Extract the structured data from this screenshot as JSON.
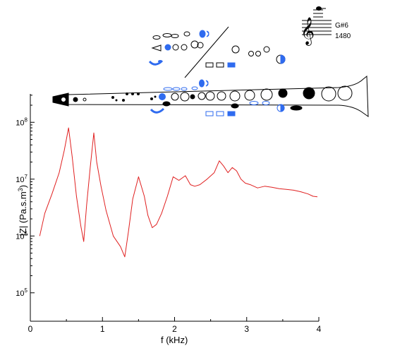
{
  "note": {
    "name": "G#6",
    "frequency": "1480"
  },
  "chart_data": {
    "type": "line",
    "title": "",
    "xlabel": "f (kHz)",
    "ylabel": "|Z| (Pa.s.m-3)",
    "xlim": [
      0,
      4
    ],
    "ylim_log10": [
      4.5,
      8.5
    ],
    "y_scale": "log",
    "x_ticks": [
      0,
      1,
      2,
      3,
      4
    ],
    "y_ticks": [
      {
        "exp": "5",
        "value": 100000
      },
      {
        "exp": "6",
        "value": 1000000
      },
      {
        "exp": "7",
        "value": 10000000
      },
      {
        "exp": "8",
        "value": 100000000
      }
    ],
    "grid": false,
    "series": [
      {
        "color": "#e02020",
        "x": [
          0.13,
          0.2,
          0.3,
          0.4,
          0.47,
          0.53,
          0.58,
          0.64,
          0.7,
          0.74,
          0.78,
          0.83,
          0.88,
          0.92,
          0.98,
          1.05,
          1.15,
          1.25,
          1.31,
          1.36,
          1.42,
          1.5,
          1.58,
          1.63,
          1.69,
          1.75,
          1.82,
          1.9,
          1.98,
          2.06,
          2.15,
          2.22,
          2.28,
          2.35,
          2.45,
          2.55,
          2.62,
          2.68,
          2.74,
          2.8,
          2.86,
          2.92,
          2.98,
          3.05,
          3.15,
          3.25,
          3.35,
          3.45,
          3.55,
          3.65,
          3.75,
          3.85,
          3.92,
          3.98
        ],
        "y": [
          1000000.0,
          2500000.0,
          5500000.0,
          13000000.0,
          32000000.0,
          80000000.0,
          25000000.0,
          5000000.0,
          1500000.0,
          800000.0,
          3500000.0,
          16000000.0,
          65000000.0,
          20000000.0,
          7500000.0,
          2800000.0,
          1000000.0,
          650000.0,
          430000.0,
          1200000.0,
          4500000.0,
          11000000.0,
          5000000.0,
          2300000.0,
          1400000.0,
          1600000.0,
          2500000.0,
          5000000.0,
          11000000.0,
          9500000.0,
          11500000.0,
          8000000.0,
          7500000.0,
          8000000.0,
          10000000.0,
          13000000.0,
          21000000.0,
          17000000.0,
          13000000.0,
          16000000.0,
          14000000.0,
          10000000.0,
          8500000.0,
          8000000.0,
          7000000.0,
          7500000.0,
          7200000.0,
          6800000.0,
          6600000.0,
          6400000.0,
          6000000.0,
          5500000.0,
          5000000.0,
          4900000.0
        ]
      }
    ]
  }
}
